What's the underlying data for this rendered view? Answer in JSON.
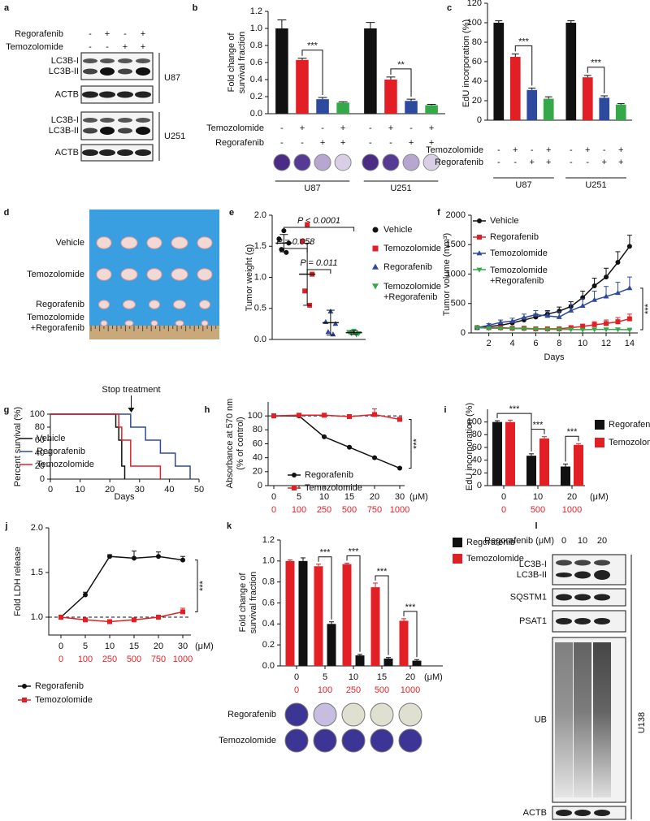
{
  "blots": [
    {
      "panel": "a",
      "header_rows": [
        {
          "label": "Regorafenib",
          "values": [
            "-",
            "+",
            "-",
            "+"
          ]
        },
        {
          "label": "Temozolomide",
          "values": [
            "-",
            "-",
            "+",
            "+"
          ]
        }
      ],
      "groups": [
        {
          "name": "U87",
          "bands": [
            "LC3B-I\nLC3B-II",
            "ACTB"
          ]
        },
        {
          "name": "U251",
          "bands": [
            "LC3B-I\nLC3B-II",
            "ACTB"
          ]
        }
      ]
    },
    {
      "panel": "l",
      "header": "Regorafenib (μM)",
      "lanes": [
        "0",
        "10",
        "20"
      ],
      "bands": [
        "LC3B-I\nLC3B-II",
        "SQSTM1",
        "PSAT1",
        "UB",
        "ACTB"
      ],
      "cell_line": "U138"
    }
  ],
  "photo": {
    "panel": "d",
    "rows": [
      "Vehicle",
      "Temozolomide",
      "Regorafenib",
      "Temozolomide\n+Regorafenib"
    ]
  },
  "chart_data": [
    {
      "panel": "b",
      "type": "bar",
      "ylabel": "Fold change of\nsurvival fraction",
      "groups": [
        "U87",
        "U251"
      ],
      "series": [
        {
          "color": "#111111",
          "values": [
            1.0,
            1.0
          ],
          "errors": [
            0.1,
            0.07
          ]
        },
        {
          "color": "#e31f26",
          "values": [
            0.63,
            0.4
          ],
          "errors": [
            0.02,
            0.03
          ]
        },
        {
          "color": "#2e4a9e",
          "values": [
            0.17,
            0.15
          ],
          "errors": [
            0.02,
            0.02
          ]
        },
        {
          "color": "#35a84a",
          "values": [
            0.13,
            0.1
          ],
          "errors": [
            0.01,
            0.01
          ]
        }
      ],
      "conditions": [
        {
          "label": "Temozolomide",
          "signs": [
            "-",
            "+",
            "-",
            "+"
          ]
        },
        {
          "label": "Regorafenib",
          "signs": [
            "-",
            "-",
            "+",
            "+"
          ]
        }
      ],
      "significance": [
        "***",
        "**"
      ],
      "ylim": [
        0,
        1.2
      ],
      "yticks": [
        {
          "value": 0,
          "label": "0.0"
        },
        0.2,
        0.4,
        0.6,
        0.8,
        {
          "value": 1,
          "label": "1.0"
        },
        1.2
      ]
    },
    {
      "panel": "c",
      "type": "bar",
      "ylabel": "EdU incorporation (%)",
      "groups": [
        "U87",
        "U251"
      ],
      "series": [
        {
          "color": "#111111",
          "values": [
            100,
            100
          ],
          "errors": [
            2,
            2
          ]
        },
        {
          "color": "#e31f26",
          "values": [
            65,
            44
          ],
          "errors": [
            3,
            2
          ]
        },
        {
          "color": "#2e4a9e",
          "values": [
            31,
            23
          ],
          "errors": [
            2,
            2
          ]
        },
        {
          "color": "#35a84a",
          "values": [
            22,
            16
          ],
          "errors": [
            2,
            1
          ]
        }
      ],
      "conditions": [
        {
          "label": "Temozolomide",
          "signs": [
            "-",
            "+",
            "-",
            "+"
          ]
        },
        {
          "label": "Regorafenib",
          "signs": [
            "-",
            "-",
            "+",
            "+"
          ]
        }
      ],
      "significance": [
        "***",
        "***"
      ],
      "ylim": [
        0,
        120
      ],
      "yticks": [
        0,
        20,
        40,
        60,
        80,
        100,
        120
      ]
    },
    {
      "panel": "e",
      "type": "dot",
      "ylabel": "Tumor weight (g)",
      "series": [
        {
          "name": "Vehicle",
          "color": "#111111",
          "marker": "circle",
          "values": [
            1.75,
            1.62,
            1.55,
            1.45,
            1.4
          ],
          "mean": 1.55,
          "sd": 0.14
        },
        {
          "name": "Temozolomide",
          "color": "#e31f26",
          "marker": "square",
          "values": [
            1.85,
            1.58,
            1.05,
            0.78,
            0.55
          ],
          "mean": 1.05,
          "sd": 0.5
        },
        {
          "name": "Regorafenib",
          "color": "#2e4a9e",
          "marker": "triangle",
          "values": [
            0.45,
            0.28,
            0.25,
            0.12,
            0.08
          ],
          "mean": 0.27,
          "sd": 0.2
        },
        {
          "name": "Temozolomide\n+Regorafenib",
          "color": "#35a84a",
          "marker": "triangle-down",
          "values": [
            0.14,
            0.12,
            0.1,
            0.1,
            0.08
          ],
          "mean": 0.11,
          "sd": 0.03
        }
      ],
      "annotations": [
        "P < 0.0001",
        "P = 0.058",
        "P = 0.011"
      ],
      "ylim": [
        0,
        2
      ],
      "yticks": [
        {
          "value": 0,
          "label": "0.0"
        },
        0.5,
        {
          "value": 1,
          "label": "1.0"
        },
        1.5,
        {
          "value": 2,
          "label": "2.0"
        }
      ]
    },
    {
      "panel": "f",
      "type": "line",
      "xlabel": "Days",
      "ylabel": "Tumor volume (mm³)",
      "x": [
        1,
        2,
        3,
        4,
        5,
        6,
        7,
        8,
        9,
        10,
        11,
        12,
        13,
        14
      ],
      "series": [
        {
          "name": "Vehicle",
          "color": "#111111",
          "marker": "circle",
          "values": [
            90,
            110,
            130,
            170,
            220,
            270,
            320,
            370,
            450,
            600,
            800,
            950,
            1200,
            1470
          ],
          "errors": [
            10,
            15,
            20,
            30,
            40,
            50,
            60,
            70,
            80,
            110,
            130,
            150,
            180,
            190
          ]
        },
        {
          "name": "Regorafenib",
          "color": "#e31f26",
          "marker": "square",
          "values": [
            90,
            90,
            90,
            80,
            80,
            70,
            70,
            70,
            90,
            110,
            140,
            160,
            190,
            240
          ],
          "errors": [
            10,
            10,
            15,
            15,
            15,
            15,
            15,
            20,
            30,
            40,
            50,
            60,
            70,
            80
          ]
        },
        {
          "name": "Temozolomide",
          "color": "#2e4a9e",
          "marker": "triangle",
          "values": [
            90,
            130,
            180,
            200,
            260,
            310,
            290,
            270,
            380,
            460,
            560,
            620,
            680,
            760
          ],
          "errors": [
            15,
            30,
            40,
            50,
            60,
            70,
            80,
            90,
            100,
            120,
            150,
            170,
            180,
            190
          ]
        },
        {
          "name": "Temozolomide\n+Regorafenib",
          "color": "#35a84a",
          "marker": "triangle-down",
          "values": [
            90,
            80,
            80,
            75,
            70,
            65,
            60,
            60,
            60,
            55,
            60,
            60,
            60,
            55
          ],
          "errors": [
            5,
            5,
            5,
            5,
            5,
            5,
            5,
            5,
            5,
            5,
            5,
            5,
            5,
            5
          ]
        }
      ],
      "significance": "***",
      "xlim": [
        0.5,
        14.7
      ],
      "xticks": [
        2,
        4,
        6,
        8,
        10,
        12,
        14
      ],
      "ylim": [
        0,
        2000
      ],
      "yticks": [
        0,
        500,
        1000,
        1500,
        2000
      ]
    },
    {
      "panel": "g",
      "type": "step",
      "xlabel": "Days",
      "ylabel": "Percent survival (%)",
      "series": [
        {
          "name": "Vehicle",
          "color": "#111111",
          "x": [
            0,
            22,
            23,
            24,
            25
          ],
          "values": [
            100,
            80,
            60,
            20,
            0
          ]
        },
        {
          "name": "Regorafenib",
          "color": "#2e4a9e",
          "x": [
            0,
            27,
            32,
            37,
            42,
            47
          ],
          "values": [
            100,
            80,
            60,
            40,
            20,
            0
          ]
        },
        {
          "name": "Temozolomide",
          "color": "#e31f26",
          "x": [
            0,
            23,
            24,
            27,
            37
          ],
          "values": [
            100,
            80,
            60,
            20,
            0
          ]
        }
      ],
      "annotation": "Stop treatment",
      "annotation_x": 25,
      "xlim": [
        0,
        50
      ],
      "xticks": [
        0,
        10,
        20,
        30,
        40,
        50
      ],
      "ylim": [
        0,
        100
      ],
      "yticks": [
        0,
        20,
        40,
        60,
        80,
        100
      ]
    },
    {
      "panel": "h",
      "type": "line",
      "ylabel": "Absorbance at 570 nm\n(% of control)",
      "categories": [
        "0",
        "5",
        "10",
        "15",
        "20",
        "30"
      ],
      "categories2": [
        "0",
        "100",
        "250",
        "500",
        "750",
        "1000"
      ],
      "unit": "(μM)",
      "series": [
        {
          "name": "Regorafenib",
          "color": "#111111",
          "marker": "circle",
          "values": [
            100,
            100,
            70,
            55,
            40,
            25
          ],
          "errors": [
            2,
            2,
            1,
            1,
            1,
            1
          ]
        },
        {
          "name": "Temozolomide",
          "color": "#e31f26",
          "marker": "square",
          "values": [
            100,
            101,
            101,
            99,
            102,
            95
          ],
          "errors": [
            3,
            2,
            2,
            3,
            8,
            3
          ]
        }
      ],
      "reference_line": 100,
      "significance": "***",
      "ylim": [
        0,
        120
      ],
      "yticks": [
        0,
        20,
        40,
        60,
        80,
        100
      ]
    },
    {
      "panel": "i",
      "type": "bar",
      "ylabel": "EdU incorporation (%)",
      "categories": [
        "0",
        "10",
        "20"
      ],
      "categories2": [
        "0",
        "500",
        "1000"
      ],
      "unit": "(μM)",
      "series": [
        {
          "name": "Regorafenib",
          "color": "#111111",
          "values": [
            100,
            47,
            30
          ],
          "errors": [
            2,
            3,
            4
          ]
        },
        {
          "name": "Temozolomide",
          "color": "#e31f26",
          "values": [
            100,
            74,
            64
          ],
          "errors": [
            3,
            3,
            2
          ]
        }
      ],
      "significance": [
        "***",
        "***",
        "***"
      ],
      "ylim": [
        0,
        120
      ],
      "yticks": [
        0,
        20,
        40,
        60,
        80,
        100
      ]
    },
    {
      "panel": "j",
      "type": "line",
      "ylabel": "Fold LDH release",
      "categories": [
        "0",
        "5",
        "10",
        "15",
        "20",
        "30"
      ],
      "categories2": [
        "0",
        "100",
        "250",
        "500",
        "750",
        "1000"
      ],
      "unit": "(μM)",
      "series": [
        {
          "name": "Regorafenib",
          "color": "#111111",
          "marker": "circle",
          "values": [
            1.0,
            1.25,
            1.68,
            1.66,
            1.68,
            1.64
          ],
          "errors": [
            0,
            0.03,
            0.02,
            0.08,
            0.05,
            0.04
          ]
        },
        {
          "name": "Temozolomide",
          "color": "#e31f26",
          "marker": "square",
          "values": [
            1.0,
            0.97,
            0.95,
            0.97,
            1.0,
            1.06
          ],
          "errors": [
            0,
            0.01,
            0.01,
            0.01,
            0.02,
            0.04
          ]
        }
      ],
      "reference_line": 1,
      "significance": "***",
      "ylim": [
        0.8,
        2
      ],
      "yticks": [
        {
          "value": 1,
          "label": "1.0"
        },
        1.5,
        {
          "value": 2,
          "label": "2.0"
        }
      ]
    },
    {
      "panel": "k",
      "type": "bar",
      "ylabel": "Fold change of\nsurvival fraction",
      "categories": [
        "0",
        "5",
        "10",
        "15",
        "20"
      ],
      "categories2": [
        "0",
        "100",
        "250",
        "500",
        "1000"
      ],
      "unit": "(μM)",
      "series": [
        {
          "name": "Regorafenib",
          "color": "#111111",
          "values": [
            1.0,
            0.4,
            0.1,
            0.07,
            0.05
          ],
          "errors": [
            0.03,
            0.02,
            0.01,
            0.01,
            0.01
          ]
        },
        {
          "name": "Temozolomide",
          "color": "#e31f26",
          "values": [
            1.0,
            0.95,
            0.97,
            0.75,
            0.43
          ],
          "errors": [
            0.01,
            0.02,
            0.01,
            0.04,
            0.02
          ]
        }
      ],
      "bar_order": "reversed",
      "significance": [
        "***",
        "***",
        "***",
        "***"
      ],
      "colony_rows": [
        "Regorafenib",
        "Temozolomide"
      ],
      "ylim": [
        0,
        1.2
      ],
      "yticks": [
        {
          "value": 0,
          "label": "0.0"
        },
        0.2,
        0.4,
        0.6,
        0.8,
        {
          "value": 1,
          "label": "1.0"
        },
        1.2
      ]
    }
  ]
}
